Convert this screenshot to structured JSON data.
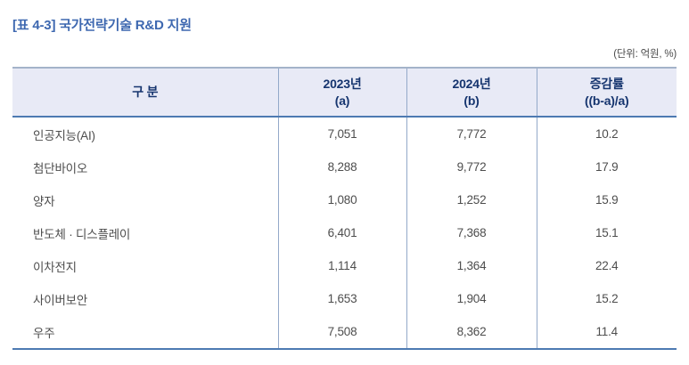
{
  "title": "[표 4-3] 국가전략기술 R&D 지원",
  "unit_note": "(단위: 억원, %)",
  "colors": {
    "title_text": "#3e68b0",
    "header_background": "#e8eaf6",
    "header_text": "#16356f",
    "table_top_border": "#a4b3c9",
    "table_blue_border": "#4d7ab2",
    "column_divider": "#93a9c9",
    "body_text": "#4d4d4d"
  },
  "table": {
    "headers": [
      {
        "line1": "구 분",
        "line2": ""
      },
      {
        "line1": "2023년",
        "line2": "(a)"
      },
      {
        "line1": "2024년",
        "line2": "(b)"
      },
      {
        "line1": "증감률",
        "line2": "((b-a)/a)"
      }
    ],
    "rows": [
      {
        "label": "인공지능(AI)",
        "y2023": "7,051",
        "y2024": "7,772",
        "rate": "10.2"
      },
      {
        "label": "첨단바이오",
        "y2023": "8,288",
        "y2024": "9,772",
        "rate": "17.9"
      },
      {
        "label": "양자",
        "y2023": "1,080",
        "y2024": "1,252",
        "rate": "15.9"
      },
      {
        "label": "반도체 · 디스플레이",
        "y2023": "6,401",
        "y2024": "7,368",
        "rate": "15.1"
      },
      {
        "label": "이차전지",
        "y2023": "1,114",
        "y2024": "1,364",
        "rate": "22.4"
      },
      {
        "label": "사이버보안",
        "y2023": "1,653",
        "y2024": "1,904",
        "rate": "15.2"
      },
      {
        "label": "우주",
        "y2023": "7,508",
        "y2024": "8,362",
        "rate": "11.4"
      }
    ]
  }
}
